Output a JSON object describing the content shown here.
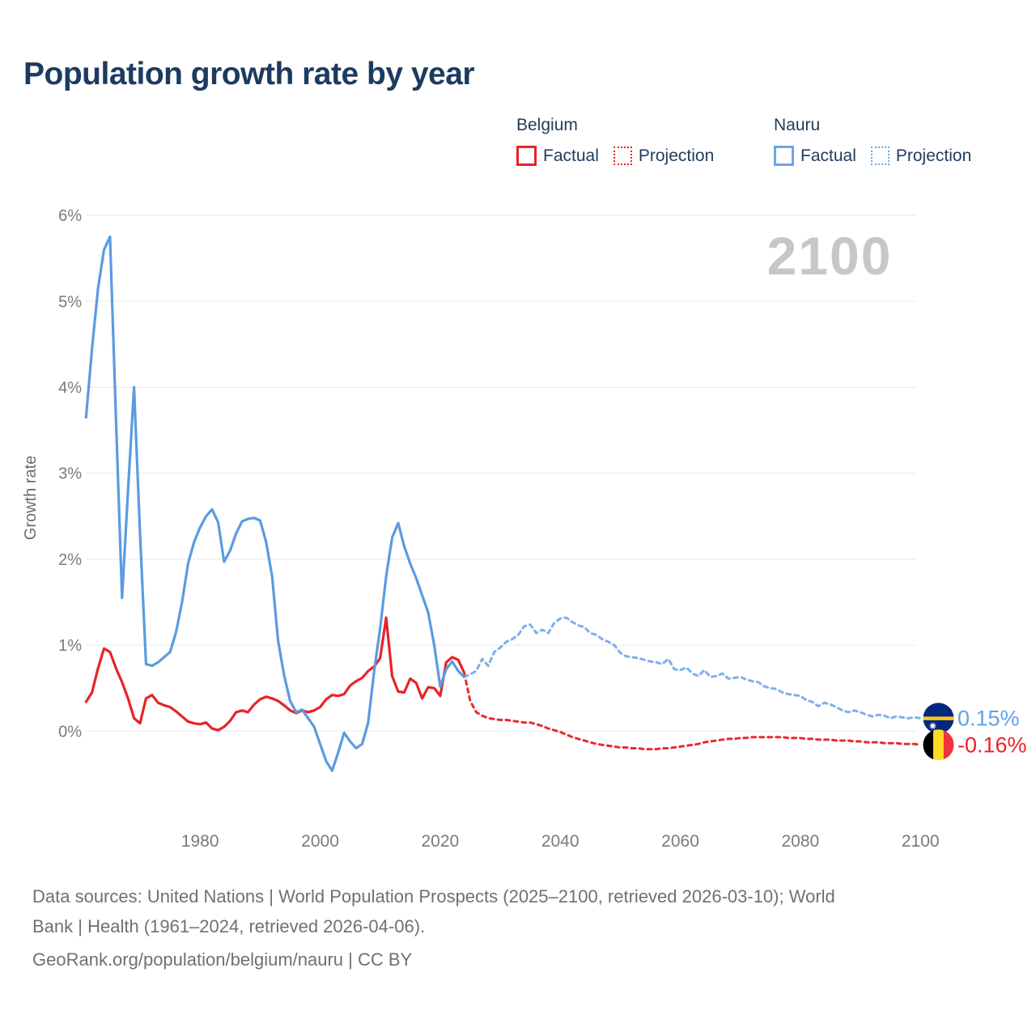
{
  "title": "Population growth rate by year",
  "watermark": "2100",
  "legend": {
    "groups": [
      {
        "country": "Belgium",
        "color": "#e8232a",
        "items": [
          {
            "label": "Factual",
            "style": "solid"
          },
          {
            "label": "Projection",
            "style": "dotted"
          }
        ]
      },
      {
        "country": "Nauru",
        "color": "#6fa7e0",
        "items": [
          {
            "label": "Factual",
            "style": "solid"
          },
          {
            "label": "Projection",
            "style": "dotted"
          }
        ]
      }
    ]
  },
  "y_axis": {
    "label": "Growth rate",
    "ticks": [
      "6%",
      "5%",
      "4%",
      "3%",
      "2%",
      "1%",
      "0%"
    ]
  },
  "x_axis": {
    "ticks": [
      "1980",
      "2000",
      "2020",
      "2040",
      "2060",
      "2080",
      "2100"
    ]
  },
  "end_labels": [
    {
      "series": "Nauru",
      "value": "0.15%",
      "flag": "nauru",
      "text_color": "#60a2e2"
    },
    {
      "series": "Belgium",
      "value": "-0.16%",
      "flag": "belgium",
      "text_color": "#e8232a"
    }
  ],
  "flags": {
    "nauru": {
      "field": "#01277f",
      "stripe": "#ffc61e",
      "star": "#ffffff"
    },
    "belgium": {
      "black": "#000000",
      "yellow": "#fdda24",
      "red": "#ef3340"
    }
  },
  "footer": {
    "sources_line1": "Data sources: United Nations | World Population Prospects (2025–2100, retrieved 2026-03-10); World",
    "sources_line2": "Bank | Health (1961–2024, retrieved 2026-04-06).",
    "attribution": "GeoRank.org/population/belgium/nauru | CC BY"
  },
  "theme": {
    "grid": "#e9e9e9",
    "axis_text": "#7a7a7a",
    "ylabel_text": "#6d6d6d",
    "title_text": "#1d3a5f",
    "watermark_text": "#c7c7c7"
  },
  "chart_data": {
    "type": "line",
    "title": "Population growth rate by year",
    "xlabel": "",
    "ylabel": "Growth rate",
    "ylim": [
      -0.6,
      6
    ],
    "xlim": [
      1961,
      2100
    ],
    "grid": "horizontal-only",
    "legend_position": "top-right",
    "series": [
      {
        "name": "Belgium Factual",
        "color": "#e8232a",
        "style": "solid",
        "x_start": 1961,
        "x_end": 2024,
        "values": [
          0.34,
          0.45,
          0.73,
          0.96,
          0.92,
          0.73,
          0.57,
          0.38,
          0.15,
          0.09,
          0.38,
          0.42,
          0.33,
          0.3,
          0.28,
          0.23,
          0.17,
          0.11,
          0.09,
          0.08,
          0.1,
          0.03,
          0.01,
          0.05,
          0.12,
          0.22,
          0.24,
          0.22,
          0.31,
          0.37,
          0.4,
          0.38,
          0.35,
          0.3,
          0.24,
          0.21,
          0.24,
          0.22,
          0.24,
          0.28,
          0.37,
          0.42,
          0.41,
          0.43,
          0.53,
          0.58,
          0.62,
          0.7,
          0.75,
          0.85,
          1.32,
          0.64,
          0.46,
          0.45,
          0.61,
          0.56,
          0.38,
          0.51,
          0.5,
          0.41,
          0.8,
          0.86,
          0.83,
          0.68
        ]
      },
      {
        "name": "Belgium Projection",
        "color": "#ea2a31",
        "style": "dashed",
        "x_start": 2024,
        "x_end": 2100,
        "values": [
          0.68,
          0.35,
          0.22,
          0.18,
          0.15,
          0.14,
          0.13,
          0.13,
          0.12,
          0.11,
          0.1,
          0.1,
          0.08,
          0.06,
          0.03,
          0.01,
          -0.01,
          -0.04,
          -0.07,
          -0.09,
          -0.11,
          -0.13,
          -0.15,
          -0.16,
          -0.17,
          -0.18,
          -0.19,
          -0.19,
          -0.2,
          -0.2,
          -0.21,
          -0.21,
          -0.21,
          -0.2,
          -0.2,
          -0.19,
          -0.18,
          -0.17,
          -0.16,
          -0.15,
          -0.13,
          -0.12,
          -0.11,
          -0.1,
          -0.09,
          -0.09,
          -0.08,
          -0.08,
          -0.07,
          -0.07,
          -0.07,
          -0.07,
          -0.07,
          -0.07,
          -0.08,
          -0.08,
          -0.08,
          -0.09,
          -0.09,
          -0.1,
          -0.1,
          -0.1,
          -0.11,
          -0.11,
          -0.11,
          -0.12,
          -0.12,
          -0.13,
          -0.13,
          -0.13,
          -0.14,
          -0.14,
          -0.14,
          -0.15,
          -0.15,
          -0.15,
          -0.16
        ]
      },
      {
        "name": "Nauru Factual",
        "color": "#5b9be0",
        "style": "solid",
        "x_start": 1961,
        "x_end": 2024,
        "values": [
          3.65,
          4.45,
          5.15,
          5.6,
          5.75,
          3.6,
          1.55,
          2.8,
          4.0,
          2.3,
          0.78,
          0.76,
          0.8,
          0.86,
          0.92,
          1.15,
          1.5,
          1.95,
          2.2,
          2.37,
          2.5,
          2.58,
          2.43,
          1.97,
          2.1,
          2.3,
          2.44,
          2.47,
          2.48,
          2.45,
          2.2,
          1.8,
          1.05,
          0.65,
          0.35,
          0.22,
          0.25,
          0.15,
          0.05,
          -0.15,
          -0.35,
          -0.46,
          -0.25,
          -0.02,
          -0.12,
          -0.2,
          -0.15,
          0.1,
          0.7,
          1.2,
          1.8,
          2.25,
          2.42,
          2.15,
          1.95,
          1.78,
          1.58,
          1.38,
          1.0,
          0.52,
          0.72,
          0.81,
          0.7,
          0.63
        ]
      },
      {
        "name": "Nauru Projection",
        "color": "#7db1e8",
        "style": "dashed",
        "x_start": 2024,
        "x_end": 2100,
        "values": [
          0.63,
          0.66,
          0.7,
          0.84,
          0.76,
          0.92,
          0.97,
          1.04,
          1.07,
          1.12,
          1.22,
          1.24,
          1.14,
          1.18,
          1.14,
          1.26,
          1.31,
          1.32,
          1.27,
          1.23,
          1.21,
          1.14,
          1.12,
          1.07,
          1.04,
          1.0,
          0.91,
          0.87,
          0.86,
          0.85,
          0.83,
          0.81,
          0.8,
          0.78,
          0.84,
          0.72,
          0.71,
          0.74,
          0.67,
          0.64,
          0.71,
          0.63,
          0.64,
          0.67,
          0.61,
          0.62,
          0.63,
          0.6,
          0.58,
          0.57,
          0.52,
          0.5,
          0.49,
          0.45,
          0.43,
          0.42,
          0.41,
          0.36,
          0.34,
          0.29,
          0.33,
          0.31,
          0.28,
          0.24,
          0.22,
          0.24,
          0.22,
          0.19,
          0.17,
          0.19,
          0.18,
          0.15,
          0.17,
          0.16,
          0.15,
          0.16,
          0.15
        ]
      }
    ],
    "end_annotations": [
      {
        "series": "Nauru Projection",
        "year": 2100,
        "value": 0.15,
        "label": "0.15%"
      },
      {
        "series": "Belgium Projection",
        "year": 2100,
        "value": -0.16,
        "label": "-0.16%"
      }
    ]
  }
}
